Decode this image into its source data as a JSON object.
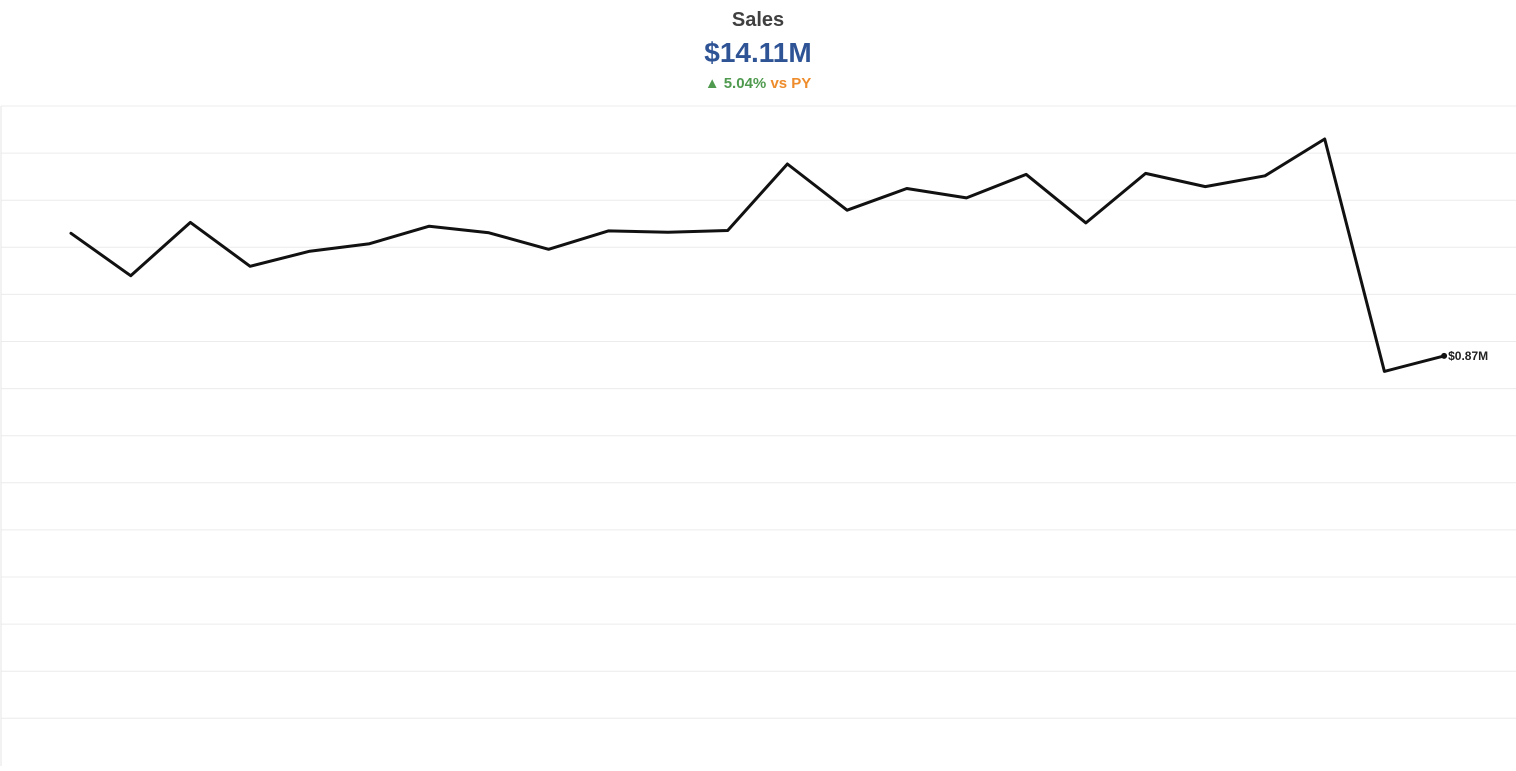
{
  "kpi": {
    "title": "Sales",
    "value": "$14.11M",
    "arrow": "▲",
    "change_pct": "5.04%",
    "change_suffix": "vs PY",
    "colors": {
      "title": "#404040",
      "value": "#2f5496",
      "positive": "#4f9a4f",
      "comparison": "#ee8c2c"
    }
  },
  "chart_data": {
    "type": "line",
    "title": "",
    "xlabel": "",
    "ylabel": "",
    "grid": true,
    "legend": "none",
    "ylim": [
      0,
      1.4
    ],
    "series": [
      {
        "values": [
          1.13,
          1.04,
          1.153,
          1.06,
          1.092,
          1.108,
          1.145,
          1.131,
          1.096,
          1.135,
          1.132,
          1.136,
          1.277,
          1.179,
          1.225,
          1.205,
          1.255,
          1.152,
          1.257,
          1.229,
          1.252,
          1.33,
          0.837,
          0.87
        ],
        "color": "#111111"
      }
    ],
    "end_label": "$0.87M"
  }
}
